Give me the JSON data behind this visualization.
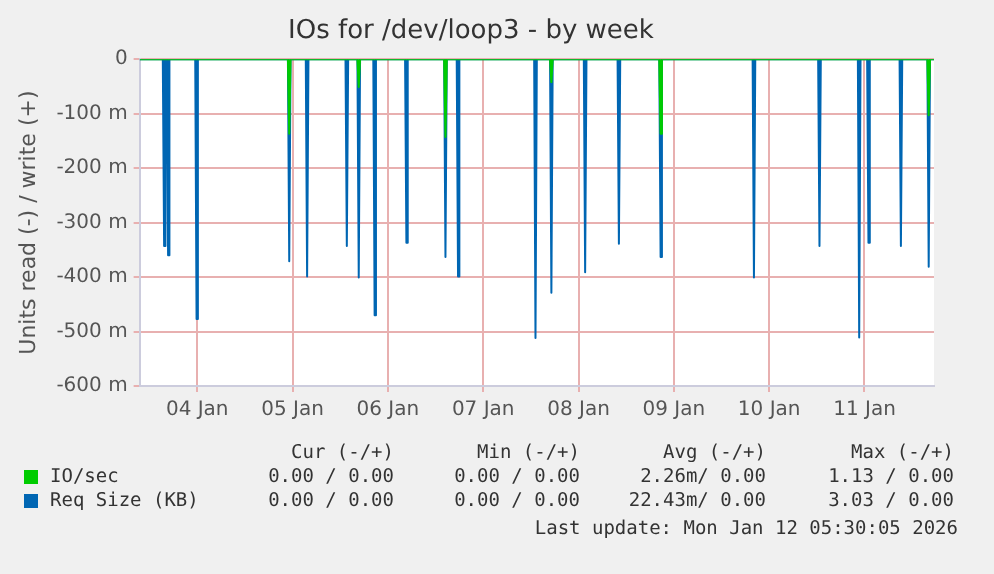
{
  "chart_data": {
    "type": "area",
    "title": "IOs for /dev/loop3 - by week",
    "ylabel": "Units read (-) / write (+)",
    "xlim": [
      "2026-01-03T09:30",
      "2026-01-11T17:30"
    ],
    "xticks": [
      {
        "value": "2026-01-04",
        "label": "04 Jan"
      },
      {
        "value": "2026-01-05",
        "label": "05 Jan"
      },
      {
        "value": "2026-01-06",
        "label": "06 Jan"
      },
      {
        "value": "2026-01-07",
        "label": "07 Jan"
      },
      {
        "value": "2026-01-08",
        "label": "08 Jan"
      },
      {
        "value": "2026-01-09",
        "label": "09 Jan"
      },
      {
        "value": "2026-01-10",
        "label": "10 Jan"
      },
      {
        "value": "2026-01-11",
        "label": "11 Jan"
      }
    ],
    "ylim": [
      -600,
      0
    ],
    "yticks": [
      {
        "value": -600,
        "label": "-600 m"
      },
      {
        "value": -500,
        "label": "-500 m"
      },
      {
        "value": -400,
        "label": "-400 m"
      },
      {
        "value": -300,
        "label": "-300 m"
      },
      {
        "value": -200,
        "label": "-200 m"
      },
      {
        "value": -100,
        "label": "-100 m"
      },
      0
    ],
    "grid": true,
    "legend": "bottom left",
    "marker": "none",
    "series": [
      {
        "name": "IO/sec",
        "color": "#00cc00",
        "x": [
          "2026-01-03T09:30",
          "2026-01-04T22:50",
          "2026-01-04T23:10",
          "2026-01-04T23:30",
          "2026-01-05T16:20",
          "2026-01-05T16:40",
          "2026-01-05T17:00",
          "2026-01-06T14:10",
          "2026-01-06T14:30",
          "2026-01-06T14:50",
          "2026-01-07T16:50",
          "2026-01-07T17:10",
          "2026-01-07T17:30",
          "2026-01-08T20:20",
          "2026-01-08T20:40",
          "2026-01-08T21:00",
          "2026-01-11T15:50",
          "2026-01-11T16:10",
          "2026-01-11T16:30",
          "2026-01-11T17:30"
        ],
        "values": [
          0,
          0,
          -137,
          0,
          0,
          -51,
          0,
          0,
          -143,
          0,
          0,
          -42,
          0,
          0,
          -137,
          0,
          0,
          -103,
          0,
          0
        ]
      },
      {
        "name": "Req Size (KB)",
        "color": "#0066b3",
        "x": [
          "2026-01-03T09:30",
          "2026-01-03T15:20",
          "2026-01-03T15:40",
          "2026-01-03T16:00",
          "2026-01-03T16:20",
          "2026-01-03T16:40",
          "2026-01-03T17:00",
          "2026-01-03T23:30",
          "2026-01-03T23:50",
          "2026-01-04T00:10",
          "2026-01-04T22:50",
          "2026-01-04T23:10",
          "2026-01-04T23:30",
          "2026-01-05T03:20",
          "2026-01-05T03:40",
          "2026-01-05T04:00",
          "2026-01-05T13:20",
          "2026-01-05T13:40",
          "2026-01-05T14:00",
          "2026-01-05T16:20",
          "2026-01-05T16:40",
          "2026-01-05T17:00",
          "2026-01-05T20:20",
          "2026-01-05T20:40",
          "2026-01-05T21:00",
          "2026-01-06T04:20",
          "2026-01-06T04:40",
          "2026-01-06T05:00",
          "2026-01-06T14:10",
          "2026-01-06T14:30",
          "2026-01-06T14:50",
          "2026-01-06T17:20",
          "2026-01-06T17:40",
          "2026-01-06T18:00",
          "2026-01-07T12:50",
          "2026-01-07T13:10",
          "2026-01-07T13:30",
          "2026-01-07T16:50",
          "2026-01-07T17:10",
          "2026-01-07T17:30",
          "2026-01-08T01:20",
          "2026-01-08T01:40",
          "2026-01-08T02:00",
          "2026-01-08T09:50",
          "2026-01-08T10:10",
          "2026-01-08T10:30",
          "2026-01-08T20:20",
          "2026-01-08T20:40",
          "2026-01-08T21:00",
          "2026-01-09T19:50",
          "2026-01-09T20:10",
          "2026-01-09T20:30",
          "2026-01-10T12:20",
          "2026-01-10T12:40",
          "2026-01-10T13:00",
          "2026-01-10T22:20",
          "2026-01-10T22:40",
          "2026-01-10T23:00",
          "2026-01-11T00:40",
          "2026-01-11T01:00",
          "2026-01-11T01:20",
          "2026-01-11T08:50",
          "2026-01-11T09:10",
          "2026-01-11T09:30",
          "2026-01-11T15:50",
          "2026-01-11T16:10",
          "2026-01-11T16:30",
          "2026-01-11T17:30"
        ],
        "values": [
          0,
          0,
          -343,
          0,
          0,
          -360,
          0,
          0,
          -477,
          0,
          0,
          -371,
          0,
          0,
          -399,
          0,
          0,
          -343,
          0,
          0,
          -401,
          0,
          0,
          -470,
          0,
          0,
          -337,
          0,
          0,
          -363,
          0,
          0,
          -399,
          0,
          0,
          -512,
          0,
          0,
          -429,
          0,
          0,
          -391,
          0,
          0,
          -339,
          0,
          0,
          -363,
          0,
          0,
          -401,
          0,
          0,
          -343,
          0,
          0,
          -511,
          0,
          0,
          -337,
          0,
          0,
          -343,
          0,
          0,
          -381,
          0,
          0
        ]
      }
    ],
    "annotations": [
      "Cur (-/+)",
      "Min (-/+)",
      "Avg (-/+)",
      "Max (-/+)",
      "0.00 / 0.00",
      "0.00 / 0.00",
      "2.26m/ 0.00",
      "1.13 / 0.00",
      "0.00 / 0.00",
      "0.00 / 0.00",
      "22.43m/ 0.00",
      "3.03 / 0.00",
      "Last update: Mon Jan 12 05:30:05 2026"
    ]
  }
}
